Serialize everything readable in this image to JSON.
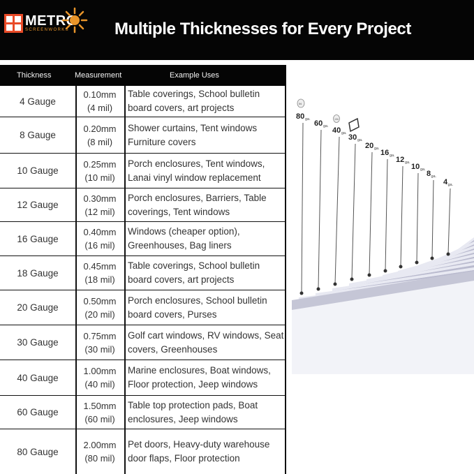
{
  "brand": {
    "name": "METRO",
    "sub": "SCREENWORKS",
    "colors": {
      "orange": "#e94b28",
      "gold": "#e9952a",
      "banner": "#050505"
    }
  },
  "headline": "Multiple Thicknesses for Every Project",
  "table": {
    "headers": [
      "Thickness",
      "Measurement",
      "Example Uses"
    ],
    "rows": [
      {
        "thickness": "4 Gauge",
        "mm": "0.10mm",
        "mil": "(4 mil)",
        "uses": "Table coverings, School bulletin board covers, art projects"
      },
      {
        "thickness": "8 Gauge",
        "mm": "0.20mm",
        "mil": "(8 mil)",
        "uses": "Shower curtains,  Tent windows Furniture covers"
      },
      {
        "thickness": "10 Gauge",
        "mm": "0.25mm",
        "mil": "(10 mil)",
        "uses": "Porch enclosures, Tent windows, Lanai vinyl window replacement"
      },
      {
        "thickness": "12 Gauge",
        "mm": "0.30mm",
        "mil": "(12 mil)",
        "uses": "Porch enclosures, Barriers, Table coverings, Tent windows"
      },
      {
        "thickness": "16 Gauge",
        "mm": "0.40mm",
        "mil": "(16 mil)",
        "uses": "Windows (cheaper option), Greenhouses, Bag liners"
      },
      {
        "thickness": "18 Gauge",
        "mm": "0.45mm",
        "mil": "(18 mil)",
        "uses": "Table coverings, School bulletin board covers, art projects"
      },
      {
        "thickness": "20 Gauge",
        "mm": "0.50mm",
        "mil": "(20 mil)",
        "uses": "Porch enclosures, School bulletin board covers, Purses"
      },
      {
        "thickness": "30 Gauge",
        "mm": "0.75mm",
        "mil": "(30 mil)",
        "uses": "Golf cart windows, RV windows, Seat covers, Greenhouses"
      },
      {
        "thickness": "40 Gauge",
        "mm": "1.00mm",
        "mil": "(40 mil)",
        "uses": "Marine enclosures, Boat windows, Floor protection, Jeep windows"
      },
      {
        "thickness": "60 Gauge",
        "mm": "1.50mm",
        "mil": "(60 mil)",
        "uses": "Table top protection pads, Boat enclosures, Jeep windows"
      },
      {
        "thickness": "80 Gauge",
        "mm": "2.00mm",
        "mil": "(80 mil)",
        "uses": "Pet doors, Heavy-duty warehouse door flaps, Floor protection"
      }
    ]
  },
  "illustration": {
    "labels": [
      "80",
      "60",
      "40",
      "30",
      "20",
      "16",
      "12",
      "10",
      "8",
      "4"
    ],
    "unit": "ga.",
    "coin_labels": [
      "5¢",
      "10¢"
    ],
    "colors": {
      "sheet_top": "#e8e9f2",
      "sheet_edge": "#b9bace",
      "pointer": "#555555"
    }
  }
}
